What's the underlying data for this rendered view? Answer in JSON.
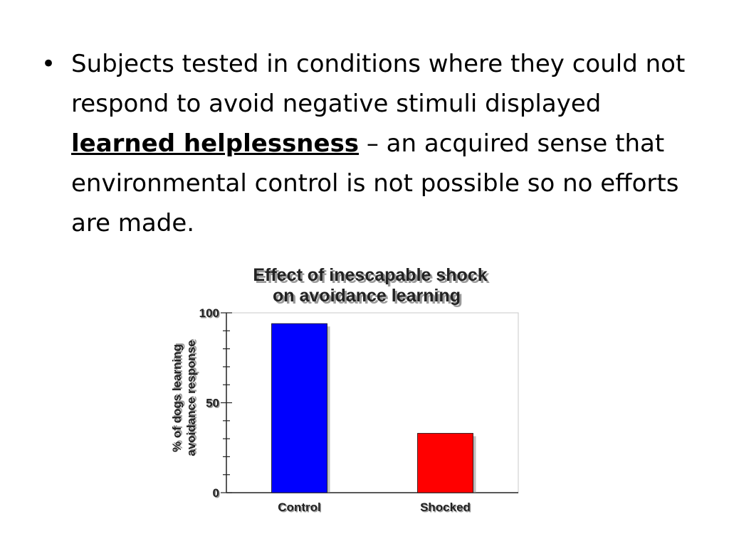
{
  "slide": {
    "bullet_symbol": "•",
    "text_before": "Subjects tested in conditions where they could not respond to avoid negative stimuli displayed ",
    "term": "learned helplessness",
    "text_after": " – an acquired sense that environmental control is not possible so no efforts are made."
  },
  "chart_data": {
    "type": "bar",
    "title": "Effect of inescapable shock",
    "subtitle": "on avoidance learning",
    "ylabel_line1": "% of dogs learning",
    "ylabel_line2": "avoidance response",
    "xlabel": "",
    "categories": [
      "Control",
      "Shocked"
    ],
    "values": [
      94,
      33
    ],
    "ylim": [
      0,
      100
    ],
    "yticks": [
      0,
      50,
      100
    ],
    "minor_tick_step": 10,
    "colors": [
      "#0000ff",
      "#ff0000"
    ],
    "grid": false,
    "legend": "none"
  }
}
